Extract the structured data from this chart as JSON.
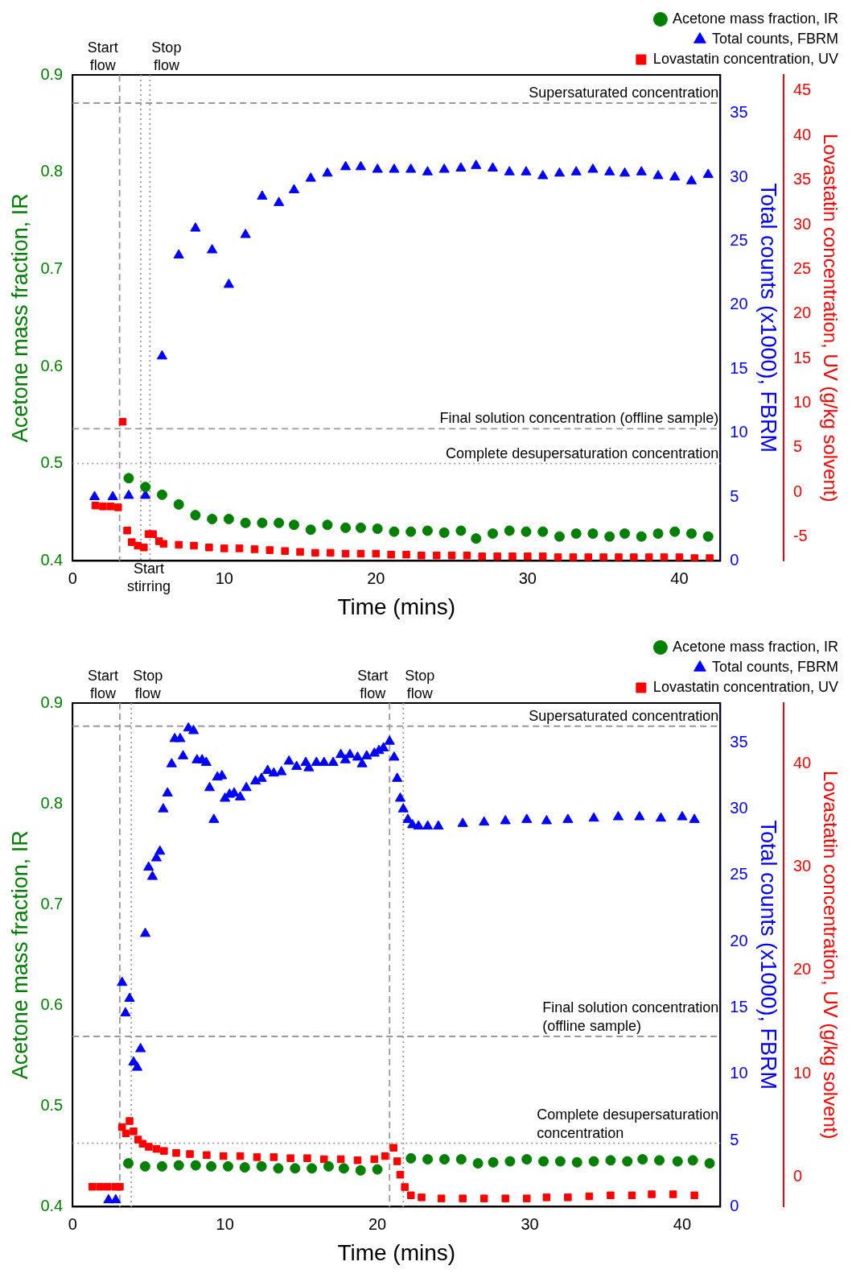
{
  "chart_data": [
    {
      "type": "scatter",
      "xlabel": "Time (mins)",
      "ylabel": "Acetone mass fraction, IR",
      "y2label": "Total counts (x1000), FBRM",
      "y3label": "Lovastatin concentration, UV (g/kg solvent)",
      "legend": "top right",
      "xlim": [
        0,
        42.7
      ],
      "xticks": [
        0,
        10,
        20,
        30,
        40
      ],
      "ylim": [
        0.4,
        0.9
      ],
      "yticks": [
        0.4,
        0.5,
        0.6,
        0.7,
        0.8,
        0.9
      ],
      "y2lim": [
        0,
        38
      ],
      "y2ticks": [
        0,
        5,
        10,
        15,
        20,
        25,
        30,
        35
      ],
      "y3lim": [
        -7.7,
        46.8
      ],
      "y3ticks": [
        -5,
        0,
        5,
        10,
        15,
        20,
        25,
        30,
        35,
        40,
        45
      ],
      "series": [
        {
          "name": "Acetone mass fraction, IR",
          "color": "#008000",
          "marker": "circle",
          "x": [
            3.7,
            4.8,
            5.9,
            7.0,
            8.1,
            9.2,
            10.3,
            11.4,
            12.5,
            13.6,
            14.6,
            15.7,
            16.8,
            18.0,
            19.0,
            20.1,
            21.2,
            22.3,
            23.4,
            24.5,
            25.6,
            26.6,
            27.7,
            28.8,
            29.9,
            31.0,
            32.1,
            33.2,
            34.3,
            35.4,
            36.4,
            37.5,
            38.6,
            39.7,
            40.8,
            41.9
          ],
          "values": [
            0.485,
            0.476,
            0.468,
            0.458,
            0.447,
            0.443,
            0.443,
            0.439,
            0.439,
            0.439,
            0.437,
            0.432,
            0.437,
            0.434,
            0.434,
            0.433,
            0.43,
            0.43,
            0.431,
            0.429,
            0.431,
            0.423,
            0.428,
            0.431,
            0.43,
            0.43,
            0.425,
            0.428,
            0.428,
            0.425,
            0.428,
            0.425,
            0.428,
            0.43,
            0.428,
            0.425
          ]
        },
        {
          "name": "Total counts, FBRM",
          "color": "#0000ff",
          "marker": "triangle",
          "axis": "y2",
          "x": [
            1.45,
            2.65,
            3.7,
            4.8,
            5.9,
            7.0,
            8.1,
            9.2,
            10.3,
            11.4,
            12.5,
            13.6,
            14.6,
            15.7,
            16.8,
            18.0,
            19.0,
            20.1,
            21.2,
            22.3,
            23.4,
            24.5,
            25.6,
            26.6,
            27.7,
            28.8,
            29.9,
            31.0,
            32.1,
            33.2,
            34.3,
            35.4,
            36.4,
            37.5,
            38.6,
            39.7,
            40.8,
            41.9
          ],
          "values": [
            5.0,
            5.0,
            5.1,
            5.1,
            16.0,
            23.9,
            26.0,
            24.3,
            21.6,
            25.5,
            28.5,
            28.0,
            29.0,
            29.9,
            30.3,
            30.8,
            30.8,
            30.6,
            30.6,
            30.6,
            30.4,
            30.6,
            30.7,
            30.9,
            30.7,
            30.4,
            30.4,
            30.1,
            30.3,
            30.4,
            30.6,
            30.4,
            30.3,
            30.4,
            30.1,
            30.0,
            29.7,
            30.2
          ]
        },
        {
          "name": "Lovastatin concentration, UV",
          "color": "#ff0000",
          "marker": "square",
          "axis": "y3",
          "x": [
            1.5,
            2.0,
            2.5,
            3.0,
            3.3,
            3.6,
            3.9,
            4.3,
            4.7,
            5.0,
            5.3,
            5.7,
            6,
            7,
            8,
            9,
            10,
            11,
            12,
            13,
            14,
            15,
            16,
            17,
            18,
            19,
            20,
            21,
            22,
            23,
            24,
            25,
            26,
            27,
            28,
            29,
            30,
            31,
            32,
            33,
            34,
            35,
            36,
            37,
            38,
            39,
            40,
            41,
            42
          ],
          "values": [
            -1.5,
            -1.6,
            -1.6,
            -1.7,
            7.9,
            -4.3,
            -5.6,
            -6.0,
            -6.2,
            -4.7,
            -4.7,
            -5.5,
            -5.8,
            -5.9,
            -6.0,
            -6.2,
            -6.3,
            -6.3,
            -6.4,
            -6.5,
            -6.6,
            -6.7,
            -6.8,
            -6.8,
            -6.9,
            -6.9,
            -6.9,
            -7.0,
            -7.0,
            -7.1,
            -7.1,
            -7.1,
            -7.1,
            -7.2,
            -7.2,
            -7.2,
            -7.2,
            -7.2,
            -7.3,
            -7.3,
            -7.3,
            -7.3,
            -7.3,
            -7.3,
            -7.3,
            -7.3,
            -7.3,
            -7.4,
            -7.4
          ]
        }
      ],
      "ref_lines": [
        {
          "axis": "y",
          "value": 0.871,
          "label": "Supersaturated concentration",
          "color": "#999999",
          "line_style": "dashed"
        },
        {
          "axis": "y",
          "value": 0.536,
          "label": "Final solution concentration (offline sample)",
          "color": "#999999",
          "line_style": "dashed"
        },
        {
          "axis": "y",
          "value": 0.5,
          "label": "Complete desupersaturation concentration",
          "color": "#999999",
          "line_style": "dotted"
        },
        {
          "axis": "x",
          "value": 3.1,
          "label": "Start flow",
          "color": "#999999",
          "line_style": "dashed"
        },
        {
          "axis": "x",
          "value": 5.1,
          "label": "Stop flow",
          "color": "#999999",
          "line_style": "dotted"
        },
        {
          "axis": "x",
          "value": 4.5,
          "label": "Start stirring",
          "color": "#999999",
          "line_style": "dotted"
        }
      ]
    },
    {
      "type": "scatter",
      "xlabel": "Time (mins)",
      "ylabel": "Acetone mass fraction, IR",
      "y2label": "Total counts (x1000), FBRM",
      "y3label": "Lovastatin concentration, UV (g/kg solvent)",
      "legend": "top right",
      "xlim": [
        0,
        42.5
      ],
      "xticks": [
        0,
        10,
        20,
        30,
        40
      ],
      "ylim": [
        0.4,
        0.9
      ],
      "yticks": [
        0.4,
        0.5,
        0.6,
        0.7,
        0.8,
        0.9
      ],
      "y2lim": [
        0,
        38
      ],
      "y2ticks": [
        0,
        5,
        10,
        15,
        20,
        25,
        30,
        35
      ],
      "y3lim": [
        -2.9,
        45.9
      ],
      "y3ticks": [
        0,
        10,
        20,
        30,
        40
      ],
      "series": [
        {
          "name": "Acetone mass fraction, IR",
          "color": "#008000",
          "marker": "circle",
          "x": [
            3.66,
            4.76,
            5.87,
            6.97,
            8.08,
            9.1,
            10.2,
            11.3,
            12.4,
            13.5,
            14.6,
            15.7,
            16.8,
            17.8,
            18.9,
            20.0,
            22.2,
            23.3,
            24.4,
            25.5,
            26.6,
            27.6,
            28.7,
            29.8,
            30.9,
            32.0,
            33.1,
            34.2,
            35.3,
            36.4,
            37.4,
            38.5,
            39.7,
            40.7,
            41.8
          ],
          "values": [
            0.443,
            0.44,
            0.44,
            0.441,
            0.441,
            0.44,
            0.44,
            0.439,
            0.44,
            0.438,
            0.438,
            0.438,
            0.44,
            0.438,
            0.436,
            0.437,
            0.448,
            0.447,
            0.447,
            0.447,
            0.443,
            0.444,
            0.445,
            0.447,
            0.445,
            0.445,
            0.444,
            0.445,
            0.446,
            0.445,
            0.447,
            0.446,
            0.445,
            0.446,
            0.443
          ]
        },
        {
          "name": "Total counts, FBRM",
          "color": "#0000ff",
          "marker": "triangle",
          "axis": "y2",
          "x": [
            2.36,
            2.83,
            3.25,
            3.47,
            3.74,
            4.0,
            4.24,
            4.46,
            4.77,
            4.99,
            5.24,
            5.5,
            5.73,
            5.95,
            6.23,
            6.5,
            6.7,
            7.06,
            7.25,
            7.6,
            7.94,
            8.16,
            8.5,
            8.77,
            8.99,
            9.27,
            9.5,
            9.8,
            10.0,
            10.3,
            10.6,
            11.0,
            11.4,
            12.0,
            12.4,
            12.8,
            13.2,
            13.7,
            14.2,
            14.7,
            15.3,
            15.5,
            16.0,
            16.5,
            17.1,
            17.6,
            17.9,
            18.2,
            18.7,
            19.0,
            19.3,
            19.8,
            20.1,
            20.4,
            20.8,
            21.1,
            21.3,
            21.5,
            21.7,
            22.0,
            22.3,
            22.7,
            23.3,
            24.0,
            25.6,
            27.0,
            28.4,
            29.8,
            31.1,
            32.5,
            34.2,
            35.8,
            37.2,
            38.6,
            40.0,
            40.8
          ],
          "values": [
            0.5,
            0.5,
            16.9,
            14.6,
            15.7,
            10.9,
            10.5,
            11.9,
            20.6,
            25.6,
            24.9,
            26.3,
            26.8,
            30.0,
            31.2,
            33.4,
            35.3,
            35.3,
            34.0,
            36.1,
            35.9,
            33.7,
            33.7,
            33.5,
            31.6,
            29.2,
            32.4,
            32.5,
            30.8,
            31.1,
            31.2,
            30.9,
            31.6,
            32.1,
            32.3,
            32.9,
            32.7,
            32.8,
            33.6,
            33.2,
            33.5,
            33.1,
            33.5,
            33.5,
            33.5,
            34.1,
            33.7,
            34.1,
            33.9,
            33.4,
            34.0,
            34.2,
            34.4,
            34.6,
            35.1,
            33.9,
            32.3,
            30.8,
            30.0,
            29.2,
            28.8,
            28.7,
            28.7,
            28.7,
            28.9,
            29.0,
            29.1,
            29.2,
            29.1,
            29.2,
            29.3,
            29.4,
            29.4,
            29.3,
            29.4,
            29.2
          ]
        },
        {
          "name": "Lovastatin concentration, UV",
          "color": "#ff0000",
          "marker": "square",
          "axis": "y3",
          "x": [
            1.3,
            1.8,
            2.3,
            2.8,
            3.1,
            3.25,
            3.5,
            3.74,
            4.0,
            4.3,
            4.6,
            5.0,
            5.5,
            6.0,
            6.8,
            7.7,
            8.8,
            9.9,
            11.0,
            12.1,
            13.2,
            14.3,
            15.4,
            16.5,
            17.6,
            18.7,
            19.8,
            20.5,
            21.06,
            21.3,
            21.5,
            21.8,
            22.2,
            22.9,
            24.2,
            25.6,
            27.0,
            28.4,
            29.8,
            31.1,
            32.5,
            33.9,
            35.3,
            36.7,
            38.0,
            39.4,
            40.8
          ],
          "values": [
            -0.97,
            -0.97,
            -0.97,
            -0.97,
            -0.97,
            4.8,
            4.2,
            5.4,
            4.4,
            3.6,
            3.2,
            2.9,
            2.7,
            2.5,
            2.3,
            2.2,
            2.1,
            2.0,
            2.0,
            1.9,
            1.9,
            1.8,
            1.8,
            1.7,
            1.7,
            1.6,
            1.7,
            2.0,
            2.8,
            1.5,
            0.2,
            -1.0,
            -1.8,
            -2.0,
            -2.1,
            -2.1,
            -2.1,
            -2.1,
            -2.1,
            -2.0,
            -2.0,
            -1.9,
            -1.8,
            -1.8,
            -1.7,
            -1.7,
            -1.8
          ]
        }
      ],
      "ref_lines": [
        {
          "axis": "y",
          "value": 0.877,
          "label": "Supersaturated concentration",
          "color": "#999999",
          "line_style": "dashed"
        },
        {
          "axis": "y",
          "value": 0.569,
          "label": "Final solution concentration (offline sample)",
          "color": "#999999",
          "line_style": "dashed"
        },
        {
          "axis": "y",
          "value": 0.463,
          "label": "Complete desupersaturation concentration",
          "color": "#999999",
          "line_style": "dotted"
        },
        {
          "axis": "x",
          "value": 3.1,
          "label": "Start flow",
          "color": "#999999",
          "line_style": "dashed"
        },
        {
          "axis": "x",
          "value": 3.85,
          "label": "Stop flow",
          "color": "#999999",
          "line_style": "dotted"
        },
        {
          "axis": "x",
          "value": 20.8,
          "label": "Start flow",
          "color": "#999999",
          "line_style": "dashed"
        },
        {
          "axis": "x",
          "value": 21.7,
          "label": "Stop flow",
          "color": "#999999",
          "line_style": "dotted"
        }
      ]
    }
  ]
}
